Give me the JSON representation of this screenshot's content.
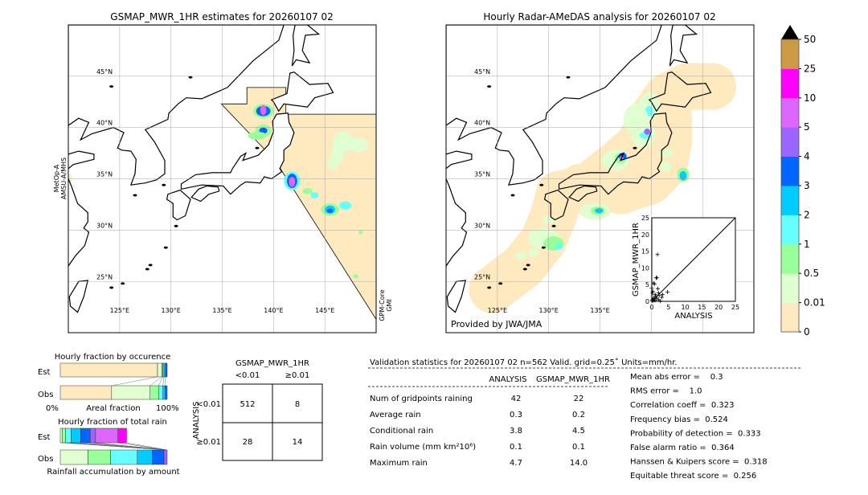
{
  "left_map": {
    "title": "GSMAP_MWR_1HR estimates for 20260107 02",
    "sensor_left": [
      "MetOp-A",
      "AMSU-A/MHS"
    ],
    "sensor_right": [
      "GPM-Core",
      "GMI"
    ]
  },
  "right_map": {
    "title": "Hourly Radar-AMeDAS analysis for 20260107 02",
    "credit": "Provided by JWA/JMA"
  },
  "colors": {
    "levels": [
      "#ffe9bf",
      "#e0ffd0",
      "#99ff99",
      "#66ffff",
      "#00ccff",
      "#0066ff",
      "#9966ff",
      "#dd66ff",
      "#ff00ff",
      "#cc9944"
    ],
    "over": "#000000"
  },
  "chart_data": [
    {
      "type": "map",
      "name": "left_map",
      "lon_range": [
        120,
        150
      ],
      "lat_range": [
        20,
        50
      ],
      "lon_ticks": [
        "125°E",
        "130°E",
        "135°E",
        "140°E",
        "145°E"
      ],
      "lat_ticks": [
        "45°N",
        "40°N",
        "35°N",
        "30°N",
        "25°N"
      ],
      "grid": true
    },
    {
      "type": "map",
      "name": "right_map",
      "lon_range": [
        120,
        150
      ],
      "lat_range": [
        20,
        50
      ],
      "lon_ticks": [
        "125°E",
        "130°E",
        "135°E"
      ],
      "lat_ticks": [
        "45°N",
        "40°N",
        "35°N",
        "30°N",
        "25°N"
      ],
      "grid": true
    },
    {
      "type": "colorbar",
      "tick_labels": [
        "0",
        "0.01",
        "0.5",
        "1",
        "2",
        "3",
        "4",
        "5",
        "10",
        "25",
        "50"
      ],
      "extend": "max"
    },
    {
      "type": "scatter",
      "xlabel": "ANALYSIS",
      "ylabel": "GSMAP_MWR_1HR",
      "xlim": [
        0,
        25
      ],
      "ylim": [
        0,
        25
      ],
      "ticks": [
        "0",
        "5",
        "10",
        "15",
        "20",
        "25"
      ],
      "diagonal": true,
      "points": [
        [
          1.7,
          14
        ],
        [
          1.5,
          7.1
        ],
        [
          1.3,
          7
        ],
        [
          0.5,
          5.5
        ],
        [
          0.8,
          5.2
        ],
        [
          1.8,
          3.8
        ],
        [
          2,
          2.5
        ],
        [
          4.7,
          2.8
        ],
        [
          3,
          1.2
        ],
        [
          3.2,
          2
        ],
        [
          0.3,
          3
        ],
        [
          1,
          2
        ],
        [
          0.5,
          1
        ],
        [
          0.2,
          0.5
        ],
        [
          1,
          0.3
        ],
        [
          2,
          0.5
        ],
        [
          0.5,
          0.2
        ],
        [
          1.5,
          1
        ],
        [
          2.5,
          0.1
        ],
        [
          0,
          4
        ],
        [
          0.2,
          2.5
        ],
        [
          0.8,
          0.8
        ],
        [
          1.2,
          1.5
        ],
        [
          0.1,
          0.1
        ],
        [
          2.2,
          1.8
        ]
      ]
    },
    {
      "type": "bar",
      "title": "Hourly fraction by occurence",
      "xlabel": "Areal fraction",
      "x_ticks": [
        "0%",
        "100%"
      ],
      "categories": [
        "Est",
        "Obs"
      ],
      "stacked_percent": {
        "Est": [
          91,
          4,
          1,
          1,
          1.5,
          1.5
        ],
        "Obs": [
          48,
          36,
          8,
          4,
          2,
          2
        ]
      },
      "segment_colors": [
        "#ffe9bf",
        "#e0ffd0",
        "#99ff99",
        "#66ffff",
        "#00ccff",
        "#0066ff"
      ]
    },
    {
      "type": "bar",
      "title": "Hourly fraction of total rain",
      "xlabel": "Rainfall accumulation by amount",
      "categories": [
        "Est",
        "Obs"
      ],
      "stacked_percent": {
        "Est": [
          2,
          3,
          5,
          9,
          9,
          5,
          21,
          8
        ],
        "Obs": [
          26,
          21,
          25,
          14,
          11,
          3
        ]
      },
      "segment_colors": [
        "#e0ffd0",
        "#99ff99",
        "#66ffff",
        "#00ccff",
        "#0066ff",
        "#9966ff",
        "#dd66ff",
        "#ff00ff"
      ]
    },
    {
      "type": "table",
      "title": "GSMAP_MWR_1HR",
      "col_headers": [
        "<0.01",
        "≥0.01"
      ],
      "row_label": "ANALYSIS",
      "row_headers": [
        "<0.01",
        "≥0.01"
      ],
      "cells": [
        [
          "512",
          "8"
        ],
        [
          "28",
          "14"
        ]
      ]
    }
  ],
  "stats": {
    "header": "Validation statistics for 20260107 02  n=562 Valid. grid=0.25˚ Units=mm/hr.",
    "col_headers": [
      "ANALYSIS",
      "GSMAP_MWR_1HR"
    ],
    "rows": [
      {
        "label": "Num of gridpoints raining",
        "a": "42",
        "b": "22"
      },
      {
        "label": "Average rain",
        "a": "0.3",
        "b": "0.2"
      },
      {
        "label": "Conditional rain",
        "a": "3.8",
        "b": "4.5"
      },
      {
        "label": "Rain volume (mm km²10⁶)",
        "a": "0.1",
        "b": "0.1"
      },
      {
        "label": "Maximum rain",
        "a": "4.7",
        "b": "14.0"
      }
    ],
    "scores": [
      "Mean abs error =    0.3",
      "RMS error =    1.0",
      "Correlation coeff =  0.323",
      "Frequency bias =  0.524",
      "Probability of detection =  0.333",
      "False alarm ratio =  0.364",
      "Hanssen & Kuipers score =  0.318",
      "Equitable threat score =  0.256"
    ]
  }
}
